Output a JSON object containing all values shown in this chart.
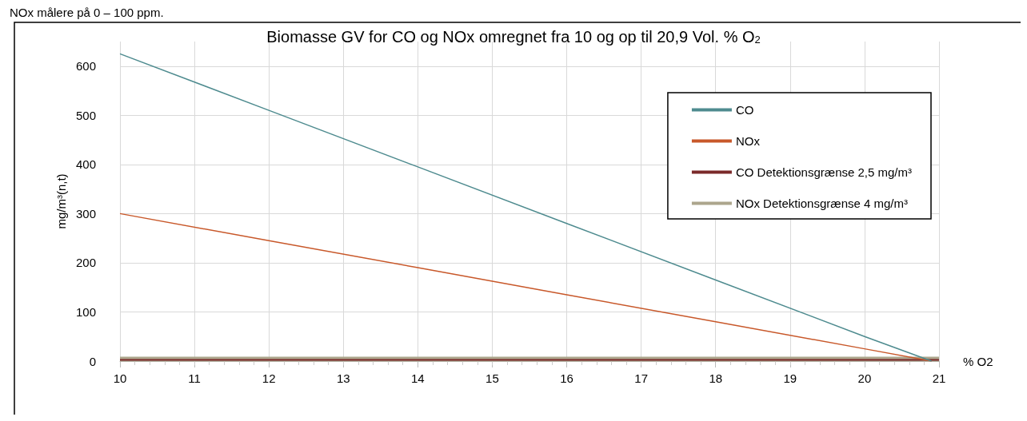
{
  "chart_data": {
    "type": "line",
    "title": "Biomasse GV for CO og NOx omregnet fra 10 og op til 20,9 Vol. % O$_{2}$",
    "xlabel": "% O2",
    "ylabel": "mg/m³(n,t)",
    "annotations": [
      "NOx målere på 0 – 100 ppm."
    ],
    "series": [
      {
        "name": "CO",
        "color": "#4e8b8f",
        "x": [
          10,
          12,
          14,
          16,
          18,
          20,
          20.9
        ],
        "values": [
          625,
          510,
          395,
          280,
          165,
          50,
          0
        ]
      },
      {
        "name": "NOx",
        "color": "#c8582a",
        "x": [
          10,
          12,
          14,
          16,
          18,
          20,
          20.9
        ],
        "values": [
          300,
          245,
          190,
          135,
          80,
          25,
          0
        ]
      },
      {
        "name": "CO Detektionsgrænse 2,5 mg/m³",
        "color": "#7b2a2a",
        "x": [
          10,
          21
        ],
        "values": [
          2.5,
          2.5
        ]
      },
      {
        "name": "NOx Detektionsgrænse 4 mg/m³",
        "color": "#aca58c",
        "x": [
          10,
          21
        ],
        "values": [
          4,
          4
        ]
      }
    ],
    "xlim": [
      10,
      21
    ],
    "xticks": [
      10,
      11,
      12,
      13,
      14,
      15,
      16,
      17,
      18,
      19,
      20,
      21
    ],
    "ylim": [
      0,
      650
    ],
    "yticks": [
      0,
      100,
      200,
      300,
      400,
      500,
      600
    ],
    "grid": true,
    "legend": "top right",
    "marker": "none",
    "line_style": "solid"
  }
}
